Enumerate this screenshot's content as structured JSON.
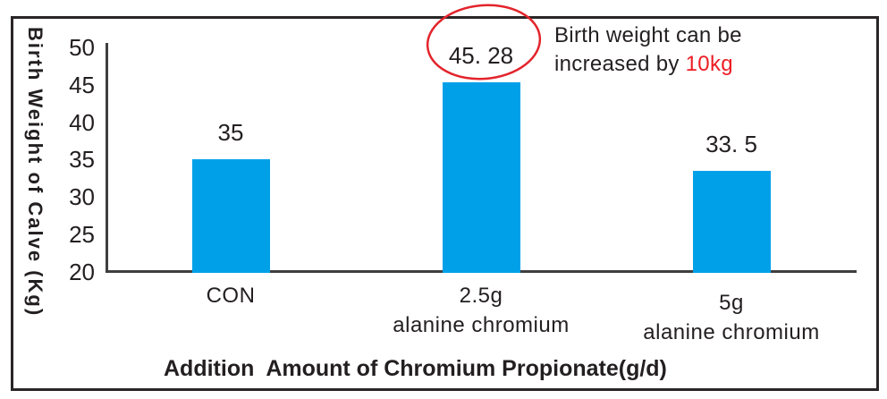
{
  "chart_data": {
    "type": "bar",
    "categories": [
      [
        "CON"
      ],
      [
        "2.5g",
        "alanine chromium"
      ],
      [
        "5g",
        "alanine chromium"
      ]
    ],
    "values": [
      35,
      45.28,
      33.5
    ],
    "value_labels": [
      "35",
      "45. 28",
      "33. 5"
    ],
    "title": "",
    "xlabel": "Addition  Amount of Chromium Propionate(g/d)",
    "ylabel": "Birth Weight of Calve (Kg)",
    "ylim": [
      20,
      50
    ],
    "yticks": [
      "50",
      "45",
      "40",
      "35",
      "30",
      "25",
      "20"
    ],
    "ytick_values": [
      50,
      45,
      40,
      35,
      30,
      25,
      20
    ],
    "grid": false,
    "legend_position": "none",
    "bar_color": "#00A0E9",
    "axis_color": "#3f3f3f",
    "text_color": "#231F20"
  },
  "annotation": {
    "line1": "Birth weight can be",
    "line2_prefix": "increased by ",
    "line2_highlight": "10kg",
    "highlight_color": "#ED1C24",
    "ellipse_color": "#E3242C",
    "circled_value": "45. 28"
  }
}
